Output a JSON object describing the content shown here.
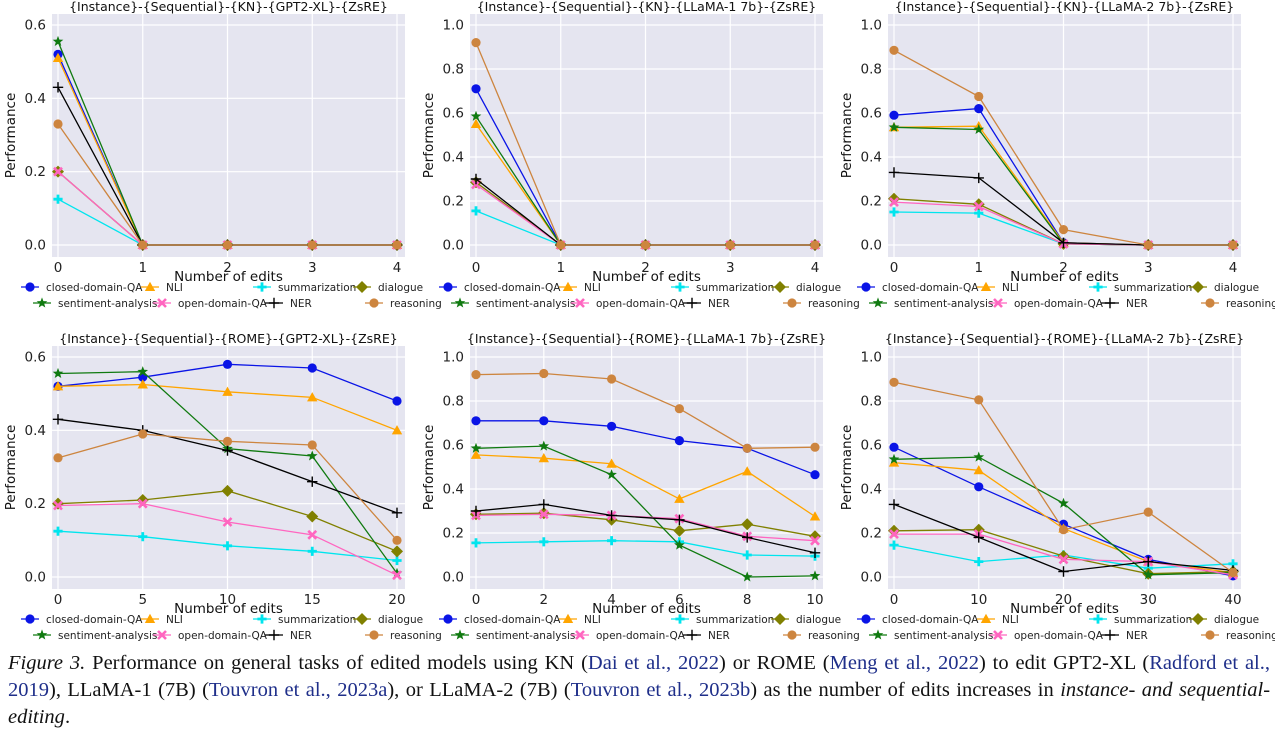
{
  "legend_labels": {
    "closed-domain-QA": "closed-domain-QA",
    "sentiment-analysis": "sentiment-analysis",
    "NLI": "NLI",
    "open-domain-QA": "open-domain-QA",
    "summarization": "summarization",
    "NER": "NER",
    "dialogue": "dialogue",
    "reasoning": "reasoning"
  },
  "series_styles": {
    "closed-domain-QA": {
      "color": "#0a14e6",
      "marker": "circle"
    },
    "sentiment-analysis": {
      "color": "#107a10",
      "marker": "star"
    },
    "NLI": {
      "color": "#ffa500",
      "marker": "triangle"
    },
    "open-domain-QA": {
      "color": "#ff66c0",
      "marker": "x"
    },
    "summarization": {
      "color": "#00e5ee",
      "marker": "plus-thick"
    },
    "NER": {
      "color": "#000000",
      "marker": "plus"
    },
    "dialogue": {
      "color": "#808000",
      "marker": "diamond"
    },
    "reasoning": {
      "color": "#cd853f",
      "marker": "circle"
    }
  },
  "chart_data": [
    {
      "type": "line",
      "title": "{Instance}-{Sequential}-{KN}-{GPT2-XL}-{ZsRE}",
      "xlabel": "Number of edits",
      "ylabel": "Performance",
      "x": [
        0,
        1,
        2,
        3,
        4
      ],
      "xticks": [
        "0",
        "1",
        "2",
        "3",
        "4"
      ],
      "ylim": [
        0,
        0.6
      ],
      "yticks": [
        "0.0",
        "0.2",
        "0.4",
        "0.6"
      ],
      "series": [
        {
          "name": "closed-domain-QA",
          "values": [
            0.52,
            0,
            0,
            0,
            0
          ]
        },
        {
          "name": "NLI",
          "values": [
            0.51,
            0,
            0,
            0,
            0
          ]
        },
        {
          "name": "summarization",
          "values": [
            0.125,
            0,
            0,
            0,
            0
          ]
        },
        {
          "name": "dialogue",
          "values": [
            0.2,
            0,
            0,
            0,
            0
          ]
        },
        {
          "name": "sentiment-analysis",
          "values": [
            0.555,
            0,
            0,
            0,
            0
          ]
        },
        {
          "name": "open-domain-QA",
          "values": [
            0.2,
            0,
            0,
            0,
            0
          ]
        },
        {
          "name": "NER",
          "values": [
            0.43,
            0,
            0,
            0,
            0
          ]
        },
        {
          "name": "reasoning",
          "values": [
            0.33,
            0,
            0,
            0,
            0
          ]
        }
      ]
    },
    {
      "type": "line",
      "title": "{Instance}-{Sequential}-{KN}-{LLaMA-1 7b}-{ZsRE}",
      "xlabel": "Number of edits",
      "ylabel": "Performance",
      "x": [
        0,
        1,
        2,
        3,
        4
      ],
      "xticks": [
        "0",
        "1",
        "2",
        "3",
        "4"
      ],
      "ylim": [
        0,
        1.0
      ],
      "yticks": [
        "0.0",
        "0.2",
        "0.4",
        "0.6",
        "0.8",
        "1.0"
      ],
      "series": [
        {
          "name": "closed-domain-QA",
          "values": [
            0.71,
            0,
            0,
            0,
            0
          ]
        },
        {
          "name": "NLI",
          "values": [
            0.55,
            0,
            0,
            0,
            0
          ]
        },
        {
          "name": "summarization",
          "values": [
            0.155,
            0,
            0,
            0,
            0
          ]
        },
        {
          "name": "dialogue",
          "values": [
            0.285,
            0,
            0,
            0,
            0
          ]
        },
        {
          "name": "sentiment-analysis",
          "values": [
            0.585,
            0,
            0,
            0,
            0
          ]
        },
        {
          "name": "open-domain-QA",
          "values": [
            0.275,
            0,
            0,
            0,
            0
          ]
        },
        {
          "name": "NER",
          "values": [
            0.3,
            0,
            0,
            0,
            0
          ]
        },
        {
          "name": "reasoning",
          "values": [
            0.92,
            0,
            0,
            0,
            0
          ]
        }
      ]
    },
    {
      "type": "line",
      "title": "{Instance}-{Sequential}-{KN}-{LLaMA-2 7b}-{ZsRE}",
      "xlabel": "Number of edits",
      "ylabel": "Performance",
      "x": [
        0,
        1,
        2,
        3,
        4
      ],
      "xticks": [
        "0",
        "1",
        "2",
        "3",
        "4"
      ],
      "ylim": [
        0,
        1.0
      ],
      "yticks": [
        "0.0",
        "0.2",
        "0.4",
        "0.6",
        "0.8",
        "1.0"
      ],
      "series": [
        {
          "name": "closed-domain-QA",
          "values": [
            0.59,
            0.62,
            0.01,
            0,
            0
          ]
        },
        {
          "name": "NLI",
          "values": [
            0.535,
            0.54,
            0.01,
            0,
            0
          ]
        },
        {
          "name": "summarization",
          "values": [
            0.15,
            0.145,
            0.005,
            0,
            0
          ]
        },
        {
          "name": "dialogue",
          "values": [
            0.21,
            0.185,
            0.005,
            0,
            0
          ]
        },
        {
          "name": "sentiment-analysis",
          "values": [
            0.535,
            0.525,
            0.005,
            0,
            0
          ]
        },
        {
          "name": "open-domain-QA",
          "values": [
            0.195,
            0.175,
            0.005,
            0,
            0
          ]
        },
        {
          "name": "NER",
          "values": [
            0.33,
            0.305,
            0.01,
            0,
            0
          ]
        },
        {
          "name": "reasoning",
          "values": [
            0.885,
            0.675,
            0.07,
            0,
            0
          ]
        }
      ]
    },
    {
      "type": "line",
      "title": "{Instance}-{Sequential}-{ROME}-{GPT2-XL}-{ZsRE}",
      "xlabel": "Number of edits",
      "ylabel": "Performance",
      "x": [
        0,
        5,
        10,
        15,
        20
      ],
      "xticks": [
        "0",
        "5",
        "10",
        "15",
        "20"
      ],
      "ylim": [
        0,
        0.6
      ],
      "yticks": [
        "0.0",
        "0.2",
        "0.4",
        "0.6"
      ],
      "series": [
        {
          "name": "closed-domain-QA",
          "values": [
            0.52,
            0.545,
            0.58,
            0.57,
            0.48
          ]
        },
        {
          "name": "NLI",
          "values": [
            0.52,
            0.525,
            0.505,
            0.49,
            0.4
          ]
        },
        {
          "name": "summarization",
          "values": [
            0.125,
            0.11,
            0.085,
            0.07,
            0.045
          ]
        },
        {
          "name": "dialogue",
          "values": [
            0.2,
            0.21,
            0.235,
            0.165,
            0.07
          ]
        },
        {
          "name": "sentiment-analysis",
          "values": [
            0.555,
            0.56,
            0.35,
            0.33,
            0.01
          ]
        },
        {
          "name": "open-domain-QA",
          "values": [
            0.195,
            0.2,
            0.15,
            0.115,
            0.005
          ]
        },
        {
          "name": "NER",
          "values": [
            0.43,
            0.4,
            0.345,
            0.26,
            0.175
          ]
        },
        {
          "name": "reasoning",
          "values": [
            0.325,
            0.39,
            0.37,
            0.36,
            0.1
          ]
        }
      ]
    },
    {
      "type": "line",
      "title": "{Instance}-{Sequential}-{ROME}-{LLaMA-1 7b}-{ZsRE}",
      "xlabel": "Number of edits",
      "ylabel": "Performance",
      "x": [
        0,
        2,
        4,
        6,
        8,
        10
      ],
      "xticks": [
        "0",
        "2",
        "4",
        "6",
        "8",
        "10"
      ],
      "ylim": [
        0,
        1.0
      ],
      "yticks": [
        "0.0",
        "0.2",
        "0.4",
        "0.6",
        "0.8",
        "1.0"
      ],
      "series": [
        {
          "name": "closed-domain-QA",
          "values": [
            0.71,
            0.71,
            0.685,
            0.62,
            0.585,
            0.465
          ]
        },
        {
          "name": "NLI",
          "values": [
            0.555,
            0.54,
            0.515,
            0.355,
            0.48,
            0.275
          ]
        },
        {
          "name": "summarization",
          "values": [
            0.155,
            0.16,
            0.165,
            0.16,
            0.1,
            0.095
          ]
        },
        {
          "name": "dialogue",
          "values": [
            0.285,
            0.29,
            0.26,
            0.21,
            0.24,
            0.185
          ]
        },
        {
          "name": "sentiment-analysis",
          "values": [
            0.585,
            0.595,
            0.465,
            0.145,
            0.0,
            0.005
          ]
        },
        {
          "name": "open-domain-QA",
          "values": [
            0.28,
            0.285,
            0.28,
            0.265,
            0.185,
            0.165
          ]
        },
        {
          "name": "NER",
          "values": [
            0.3,
            0.33,
            0.28,
            0.26,
            0.18,
            0.11
          ]
        },
        {
          "name": "reasoning",
          "values": [
            0.92,
            0.925,
            0.9,
            0.765,
            0.585,
            0.59
          ]
        }
      ]
    },
    {
      "type": "line",
      "title": "{Instance}-{Sequential}-{ROME}-{LLaMA-2 7b}-{ZsRE}",
      "xlabel": "Number of edits",
      "ylabel": "Performance",
      "x": [
        0,
        10,
        20,
        30,
        40
      ],
      "xticks": [
        "0",
        "10",
        "20",
        "30",
        "40"
      ],
      "ylim": [
        0,
        1.0
      ],
      "yticks": [
        "0.0",
        "0.2",
        "0.4",
        "0.6",
        "0.8",
        "1.0"
      ],
      "series": [
        {
          "name": "closed-domain-QA",
          "values": [
            0.59,
            0.41,
            0.24,
            0.08,
            0.005
          ]
        },
        {
          "name": "NLI",
          "values": [
            0.52,
            0.485,
            0.22,
            0.07,
            0.02
          ]
        },
        {
          "name": "summarization",
          "values": [
            0.145,
            0.07,
            0.1,
            0.04,
            0.06
          ]
        },
        {
          "name": "dialogue",
          "values": [
            0.21,
            0.215,
            0.095,
            0.015,
            0.025
          ]
        },
        {
          "name": "sentiment-analysis",
          "values": [
            0.535,
            0.545,
            0.335,
            0.01,
            0.02
          ]
        },
        {
          "name": "open-domain-QA",
          "values": [
            0.195,
            0.195,
            0.08,
            0.07,
            0.01
          ]
        },
        {
          "name": "NER",
          "values": [
            0.33,
            0.18,
            0.025,
            0.07,
            0.03
          ]
        },
        {
          "name": "reasoning",
          "values": [
            0.885,
            0.805,
            0.215,
            0.295,
            0.02
          ]
        }
      ]
    }
  ],
  "caption": {
    "label": "Figure 3.",
    "t1": " Performance on general tasks of edited models using KN (",
    "c1": "Dai et al., 2022",
    "t2": ") or ROME (",
    "c2": "Meng et al., 2022",
    "t3": ") to edit GPT2-XL (",
    "c3": "Radford et al., 2019",
    "t4": "), LLaMA-1 (7B) (",
    "c4": "Touvron et al., 2023a",
    "t5": "), or LLaMA-2 (7B) (",
    "c5": "Touvron et al., 2023b",
    "t6": ") as the number of edits increases in ",
    "em": "instance- and sequential-editing",
    "t7": "."
  }
}
